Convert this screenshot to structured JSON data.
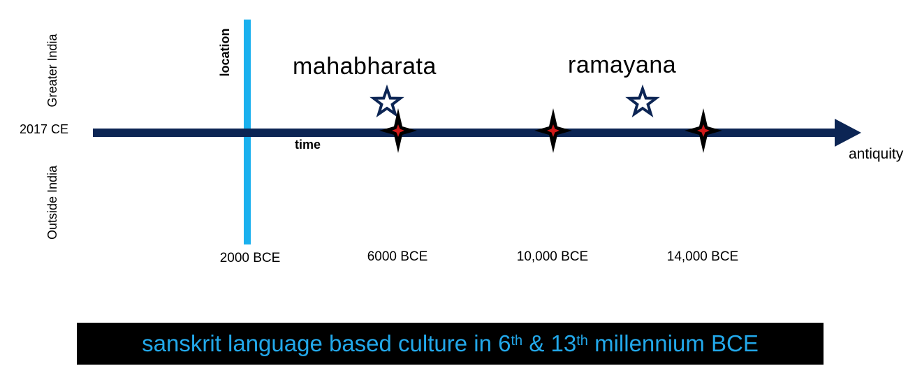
{
  "axis": {
    "left_label": "2017 CE",
    "right_label": "antiquity",
    "time_label": "time",
    "location_label": "location",
    "upper_region": "Greater India",
    "lower_region": "Outside India",
    "ticks": [
      "2000 BCE",
      "6000 BCE",
      "10,000 BCE",
      "14,000 BCE"
    ]
  },
  "epics": {
    "first": "mahabharata",
    "second": "ramayana"
  },
  "banner": {
    "part1": "sanskrit language based culture in 6",
    "sup1": "th",
    "part2": " & 13",
    "sup2": "th",
    "part3": " millennium BCE"
  },
  "colors": {
    "timeline": "#0c2554",
    "location_line": "#1ab0ee",
    "star": "#0c2554",
    "sparkle_core": "#d11a1a",
    "banner_bg": "#000000",
    "banner_text": "#22a8ea"
  }
}
